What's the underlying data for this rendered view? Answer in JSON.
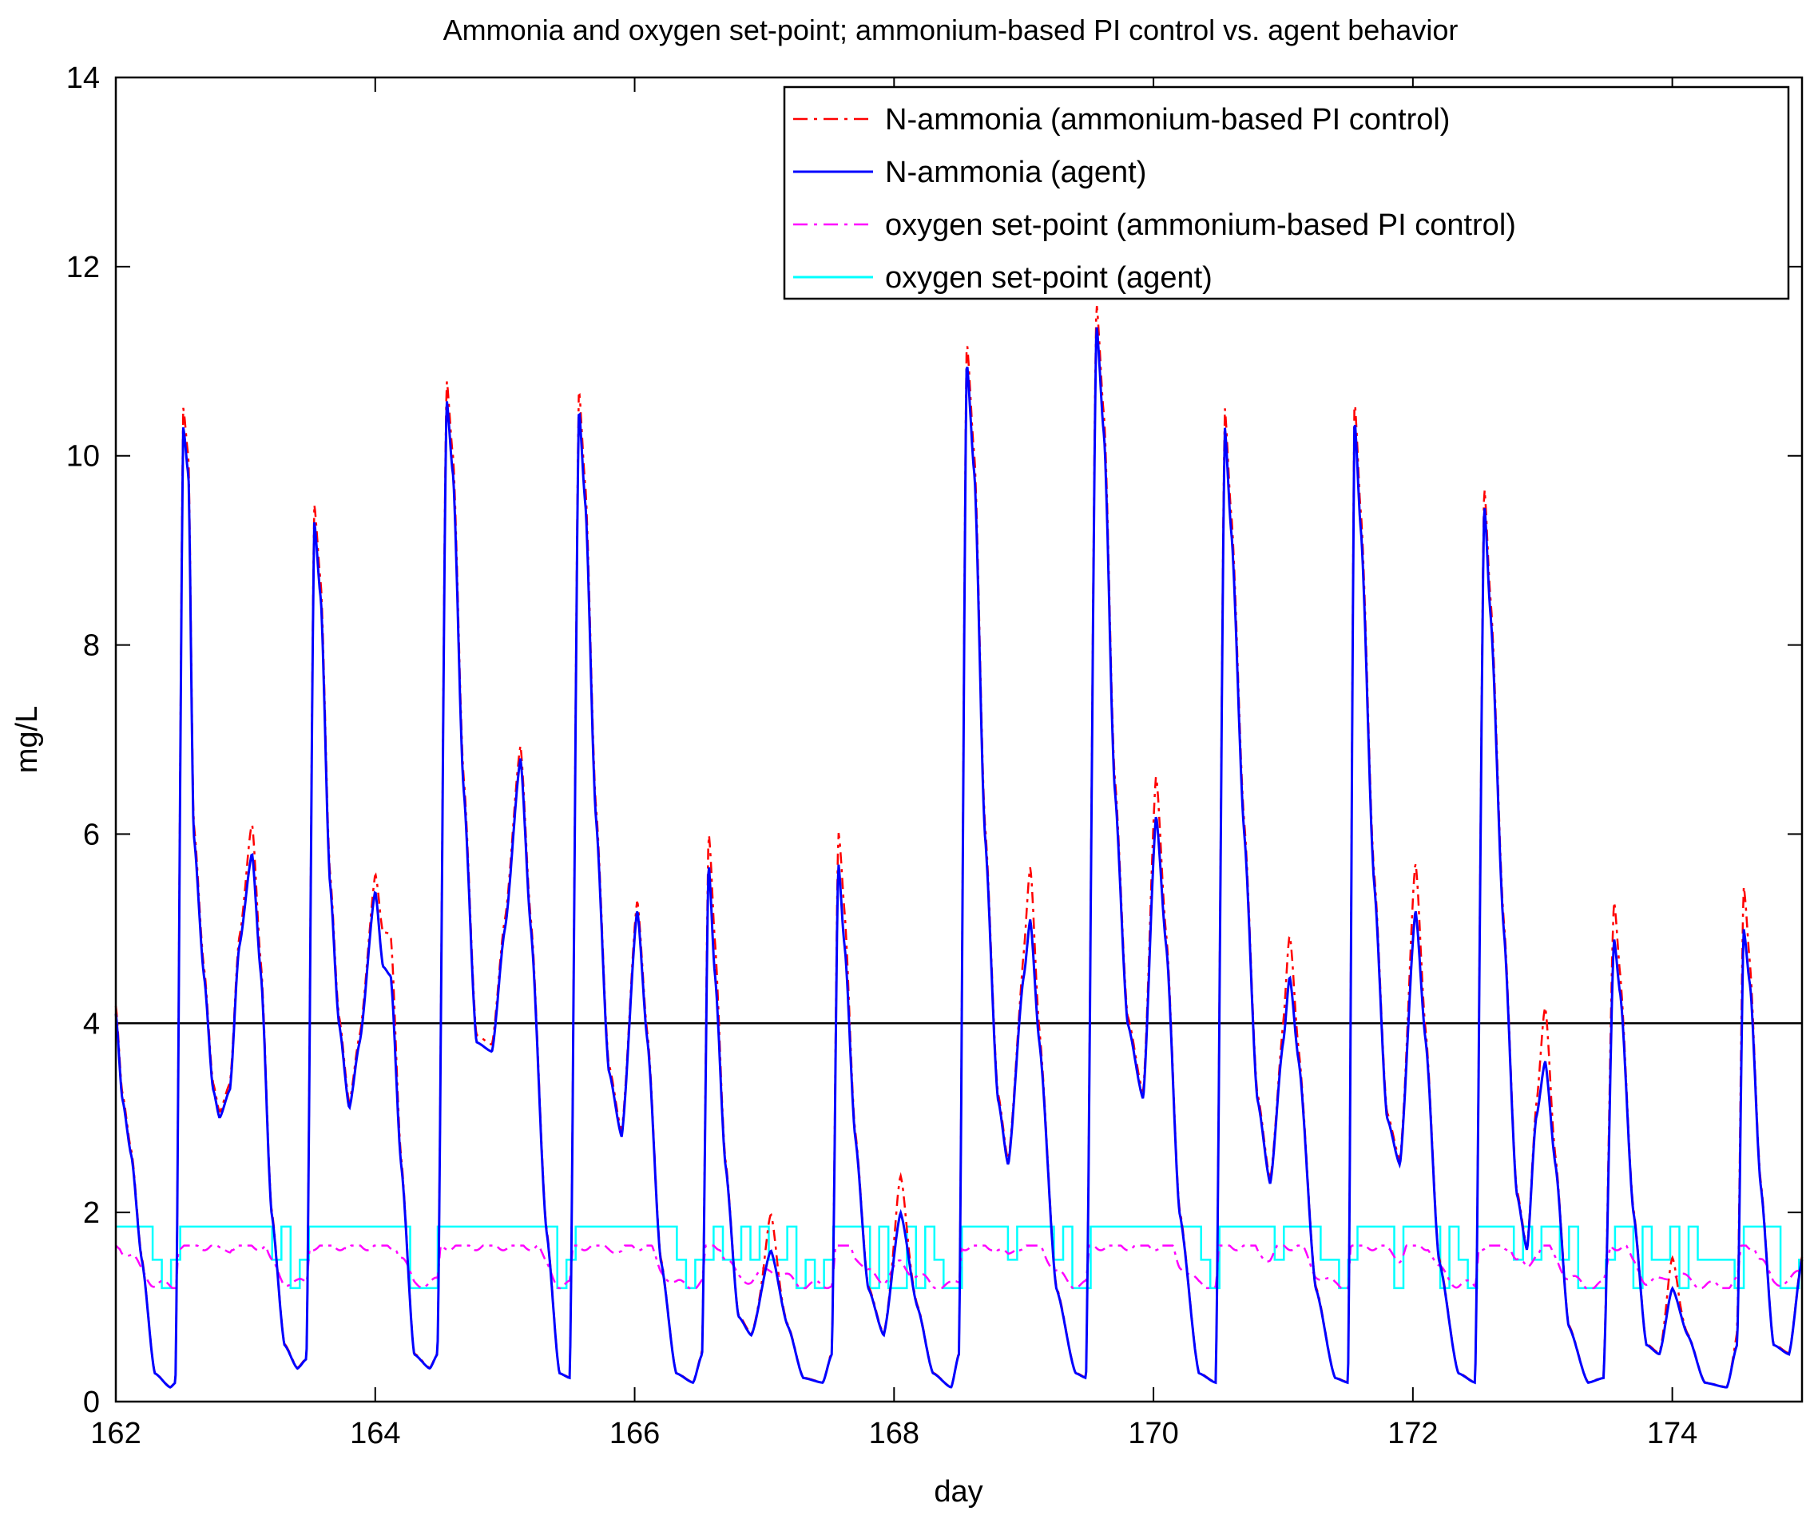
{
  "chart_data": {
    "type": "line",
    "title": "Ammonia and oxygen set-point; ammonium-based PI control vs. agent behavior",
    "xlabel": "day",
    "ylabel": "mg/L",
    "xlim": [
      162,
      175
    ],
    "ylim": [
      0,
      14
    ],
    "xticks": [
      162,
      164,
      166,
      168,
      170,
      172,
      174
    ],
    "yticks": [
      0,
      2,
      4,
      6,
      8,
      10,
      12,
      14
    ],
    "grid": false,
    "legend_position": "top-right",
    "reference_line": {
      "y": 4,
      "color": "#000000"
    },
    "series": [
      {
        "key": "pi_ammonia",
        "name": "N-ammonia (ammonium-based PI control)",
        "color": "#ff0000",
        "style": "dash-dot"
      },
      {
        "key": "agent_ammonia",
        "name": "N-ammonia (agent)",
        "color": "#0000ff",
        "style": "solid"
      },
      {
        "key": "pi_oxygen",
        "name": "oxygen set-point (ammonium-based PI control)",
        "color": "#ff00ff",
        "style": "dash-dot"
      },
      {
        "key": "agent_oxygen",
        "name": "oxygen set-point (agent)",
        "color": "#00ffff",
        "style": "solid"
      }
    ],
    "ammonia_keypoints": [
      [
        162.0,
        4.1
      ],
      [
        162.05,
        3.2
      ],
      [
        162.12,
        2.6
      ],
      [
        162.2,
        1.5
      ],
      [
        162.3,
        0.3
      ],
      [
        162.42,
        0.15
      ],
      [
        162.46,
        0.2
      ],
      [
        162.52,
        10.3
      ],
      [
        162.56,
        9.8
      ],
      [
        162.6,
        6.0
      ],
      [
        162.68,
        4.5
      ],
      [
        162.75,
        3.3
      ],
      [
        162.8,
        3.0
      ],
      [
        162.88,
        3.3
      ],
      [
        162.95,
        4.8
      ],
      [
        163.05,
        5.8
      ],
      [
        163.12,
        4.5
      ],
      [
        163.2,
        2.0
      ],
      [
        163.3,
        0.6
      ],
      [
        163.4,
        0.35
      ],
      [
        163.47,
        0.45
      ],
      [
        163.53,
        9.3
      ],
      [
        163.58,
        8.5
      ],
      [
        163.65,
        5.5
      ],
      [
        163.72,
        4.0
      ],
      [
        163.8,
        3.1
      ],
      [
        163.88,
        3.8
      ],
      [
        164.0,
        5.4
      ],
      [
        164.06,
        4.6
      ],
      [
        164.12,
        4.5
      ],
      [
        164.2,
        2.5
      ],
      [
        164.3,
        0.5
      ],
      [
        164.42,
        0.35
      ],
      [
        164.48,
        0.5
      ],
      [
        164.55,
        10.6
      ],
      [
        164.6,
        9.8
      ],
      [
        164.68,
        6.5
      ],
      [
        164.78,
        3.8
      ],
      [
        164.9,
        3.7
      ],
      [
        165.0,
        5.0
      ],
      [
        165.12,
        6.8
      ],
      [
        165.2,
        5.0
      ],
      [
        165.32,
        1.8
      ],
      [
        165.42,
        0.3
      ],
      [
        165.5,
        0.25
      ],
      [
        165.57,
        10.5
      ],
      [
        165.62,
        9.5
      ],
      [
        165.7,
        6.2
      ],
      [
        165.8,
        3.5
      ],
      [
        165.9,
        2.8
      ],
      [
        166.02,
        5.2
      ],
      [
        166.1,
        3.8
      ],
      [
        166.2,
        1.5
      ],
      [
        166.32,
        0.3
      ],
      [
        166.45,
        0.2
      ],
      [
        166.52,
        0.5
      ],
      [
        166.57,
        5.7
      ],
      [
        166.62,
        4.5
      ],
      [
        166.7,
        2.5
      ],
      [
        166.8,
        0.9
      ],
      [
        166.9,
        0.7
      ],
      [
        167.05,
        1.6
      ],
      [
        167.18,
        0.8
      ],
      [
        167.3,
        0.25
      ],
      [
        167.45,
        0.2
      ],
      [
        167.52,
        0.5
      ],
      [
        167.57,
        5.7
      ],
      [
        167.62,
        4.8
      ],
      [
        167.7,
        2.8
      ],
      [
        167.8,
        1.2
      ],
      [
        167.92,
        0.7
      ],
      [
        168.05,
        2.0
      ],
      [
        168.18,
        1.0
      ],
      [
        168.3,
        0.3
      ],
      [
        168.44,
        0.15
      ],
      [
        168.5,
        0.5
      ],
      [
        168.56,
        11.0
      ],
      [
        168.62,
        9.8
      ],
      [
        168.7,
        6.0
      ],
      [
        168.8,
        3.2
      ],
      [
        168.88,
        2.5
      ],
      [
        169.0,
        4.5
      ],
      [
        169.05,
        5.1
      ],
      [
        169.12,
        3.8
      ],
      [
        169.25,
        1.2
      ],
      [
        169.4,
        0.3
      ],
      [
        169.48,
        0.25
      ],
      [
        169.56,
        11.4
      ],
      [
        169.62,
        10.2
      ],
      [
        169.7,
        6.5
      ],
      [
        169.8,
        4.0
      ],
      [
        169.92,
        3.2
      ],
      [
        170.02,
        6.2
      ],
      [
        170.1,
        4.8
      ],
      [
        170.2,
        2.0
      ],
      [
        170.35,
        0.3
      ],
      [
        170.48,
        0.2
      ],
      [
        170.55,
        10.3
      ],
      [
        170.6,
        9.2
      ],
      [
        170.7,
        6.0
      ],
      [
        170.8,
        3.2
      ],
      [
        170.9,
        2.3
      ],
      [
        171.0,
        3.8
      ],
      [
        171.05,
        4.5
      ],
      [
        171.12,
        3.6
      ],
      [
        171.25,
        1.2
      ],
      [
        171.4,
        0.25
      ],
      [
        171.5,
        0.2
      ],
      [
        171.55,
        10.4
      ],
      [
        171.6,
        9.2
      ],
      [
        171.7,
        5.5
      ],
      [
        171.8,
        3.0
      ],
      [
        171.9,
        2.5
      ],
      [
        172.02,
        5.2
      ],
      [
        172.1,
        3.8
      ],
      [
        172.2,
        1.5
      ],
      [
        172.35,
        0.3
      ],
      [
        172.48,
        0.2
      ],
      [
        172.55,
        9.5
      ],
      [
        172.6,
        8.3
      ],
      [
        172.7,
        5.0
      ],
      [
        172.8,
        2.2
      ],
      [
        172.88,
        1.6
      ],
      [
        172.95,
        3.0
      ],
      [
        173.02,
        3.6
      ],
      [
        173.1,
        2.5
      ],
      [
        173.2,
        0.8
      ],
      [
        173.35,
        0.2
      ],
      [
        173.47,
        0.25
      ],
      [
        173.55,
        4.9
      ],
      [
        173.6,
        4.3
      ],
      [
        173.7,
        2.0
      ],
      [
        173.8,
        0.6
      ],
      [
        173.9,
        0.5
      ],
      [
        174.0,
        1.2
      ],
      [
        174.12,
        0.7
      ],
      [
        174.25,
        0.2
      ],
      [
        174.42,
        0.15
      ],
      [
        174.5,
        0.6
      ],
      [
        174.55,
        5.0
      ],
      [
        174.6,
        4.4
      ],
      [
        174.68,
        2.3
      ],
      [
        174.78,
        0.6
      ],
      [
        174.9,
        0.5
      ],
      [
        175.0,
        1.5
      ]
    ],
    "pi_ammonia_overshoot": [
      [
        163.05,
        0.2
      ],
      [
        164.05,
        0.2
      ],
      [
        164.12,
        0.3
      ],
      [
        166.6,
        0.3
      ],
      [
        167.05,
        0.35
      ],
      [
        167.6,
        0.3
      ],
      [
        168.05,
        0.35
      ],
      [
        169.05,
        0.45
      ],
      [
        170.02,
        0.3
      ],
      [
        171.05,
        0.35
      ],
      [
        172.02,
        0.4
      ],
      [
        173.02,
        0.5
      ],
      [
        173.55,
        0.3
      ],
      [
        174.0,
        0.3
      ],
      [
        174.55,
        0.35
      ]
    ],
    "oxygen_levels": {
      "agent_low": 1.2,
      "agent_mid": 1.5,
      "agent_high": 1.85,
      "pi_min": 1.2,
      "pi_max": 1.65
    }
  }
}
